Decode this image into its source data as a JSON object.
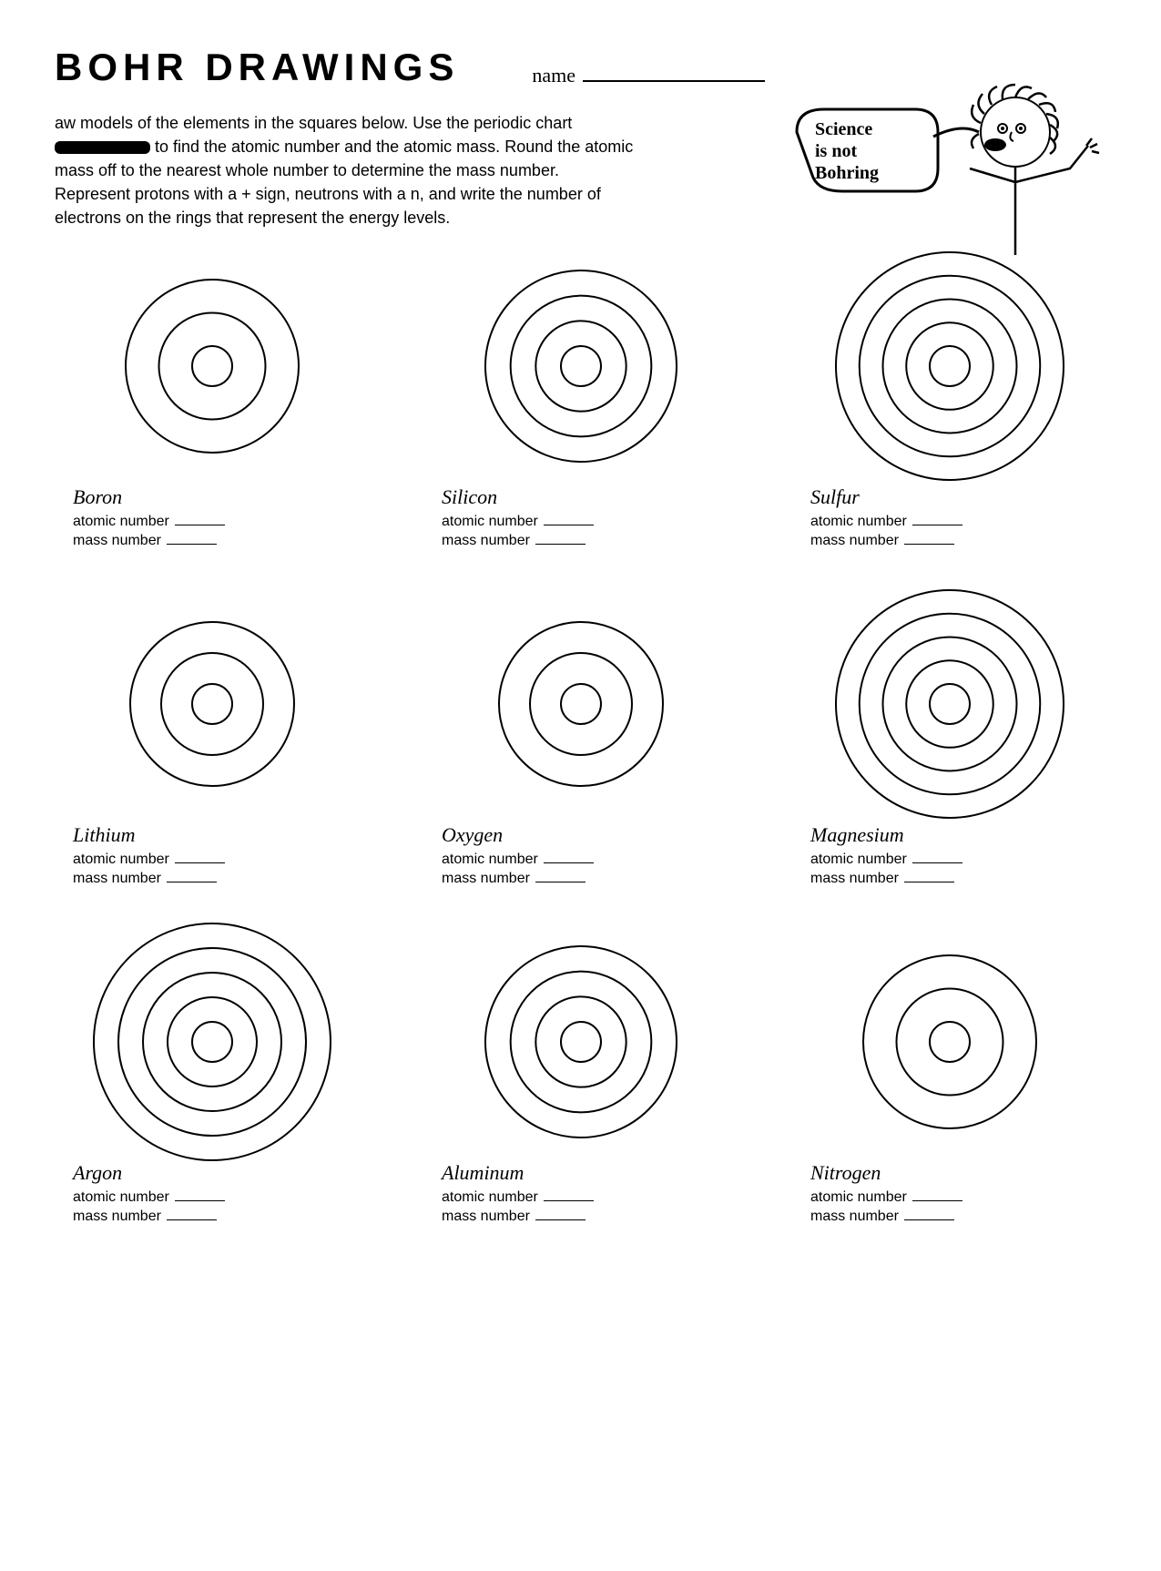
{
  "title": "BOHR  DRAWINGS",
  "name_label": "name",
  "instructions_prefix": "aw models of the elements in the squares below.  Use the periodic chart ",
  "instructions_suffix": " to find the atomic number and the atomic mass.  Round the atomic mass off to the nearest whole number to determine the mass number.  Represent protons with a + sign, neutrons with a n, and write the number of electrons on the rings that represent the energy levels.",
  "speech": {
    "line1": "Science",
    "line2": "is  not",
    "line3": "Bohring"
  },
  "field_labels": {
    "atomic": "atomic number",
    "mass": "mass number"
  },
  "diagram_style": {
    "stroke": "#000000",
    "stroke_width": 2,
    "fill": "none",
    "background": "#ffffff"
  },
  "elements": [
    {
      "name": "Boron",
      "rings": 3,
      "diameter": 190
    },
    {
      "name": "Silicon",
      "rings": 4,
      "diameter": 210
    },
    {
      "name": "Sulfur",
      "rings": 5,
      "diameter": 250
    },
    {
      "name": "Lithium",
      "rings": 3,
      "diameter": 180
    },
    {
      "name": "Oxygen",
      "rings": 3,
      "diameter": 180
    },
    {
      "name": "Magnesium",
      "rings": 5,
      "diameter": 250
    },
    {
      "name": "Argon",
      "rings": 5,
      "diameter": 260
    },
    {
      "name": "Aluminum",
      "rings": 4,
      "diameter": 210
    },
    {
      "name": "Nitrogen",
      "rings": 3,
      "diameter": 190
    }
  ]
}
